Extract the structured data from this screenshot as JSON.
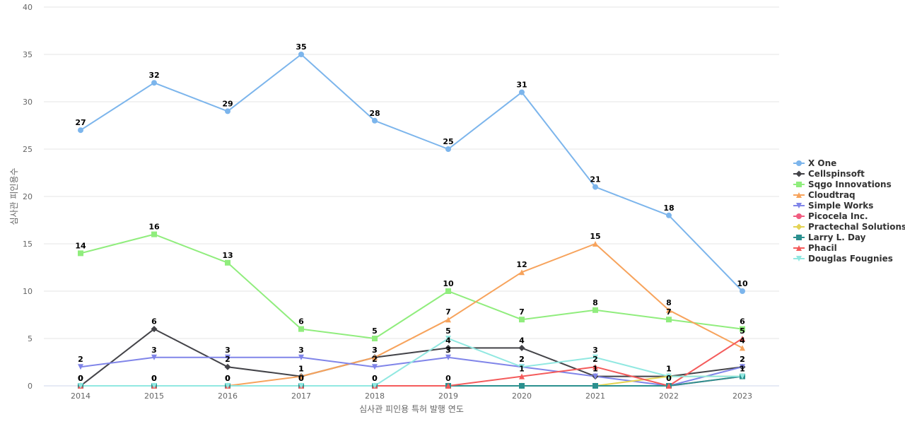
{
  "chart_data": {
    "type": "line",
    "title": "",
    "xlabel": "심사관 피인용 특허 발행 연도",
    "ylabel": "심사관 피인용수",
    "categories": [
      "2014",
      "2015",
      "2016",
      "2017",
      "2018",
      "2019",
      "2020",
      "2021",
      "2022",
      "2023"
    ],
    "ylim": [
      0,
      40
    ],
    "yticks": [
      0,
      5,
      10,
      15,
      20,
      25,
      30,
      35,
      40
    ],
    "grid": true,
    "legend_position": "right",
    "series": [
      {
        "name": "X One",
        "color": "#7cb5ec",
        "marker": "circle",
        "values": [
          27,
          32,
          29,
          35,
          28,
          25,
          31,
          21,
          18,
          10
        ],
        "labels": true
      },
      {
        "name": "Cellspinsoft",
        "color": "#434348",
        "marker": "diamond",
        "values": [
          0,
          6,
          2,
          1,
          3,
          4,
          4,
          1,
          1,
          2
        ],
        "labels": true
      },
      {
        "name": "Sqgo Innovations",
        "color": "#90ed7d",
        "marker": "square",
        "values": [
          14,
          16,
          13,
          6,
          5,
          10,
          7,
          8,
          7,
          6
        ],
        "labels": true
      },
      {
        "name": "Cloudtraq",
        "color": "#f7a35c",
        "marker": "triangle",
        "values": [
          0,
          0,
          0,
          1,
          3,
          7,
          12,
          15,
          8,
          4
        ],
        "labels": true
      },
      {
        "name": "Simple Works",
        "color": "#8085e9",
        "marker": "triangle-down",
        "values": [
          2,
          3,
          3,
          3,
          2,
          3,
          2,
          1,
          0,
          2
        ],
        "labels": true
      },
      {
        "name": "Picocela Inc.",
        "color": "#f15c80",
        "marker": "circle",
        "values": [
          0,
          0,
          0,
          0,
          0,
          0,
          0,
          0,
          0,
          1
        ],
        "labels": false
      },
      {
        "name": "Practechal Solutions",
        "color": "#e4d354",
        "marker": "diamond",
        "values": [
          0,
          0,
          0,
          0,
          0,
          0,
          0,
          0,
          1,
          1
        ],
        "labels": false
      },
      {
        "name": "Larry L. Day",
        "color": "#2b908f",
        "marker": "square",
        "values": [
          0,
          0,
          0,
          0,
          0,
          0,
          0,
          0,
          0,
          1
        ],
        "labels": false
      },
      {
        "name": "Phacil",
        "color": "#f45b5b",
        "marker": "triangle",
        "values": [
          0,
          0,
          0,
          0,
          0,
          0,
          1,
          2,
          0,
          5
        ],
        "labels": true
      },
      {
        "name": "Douglas Fougnies",
        "color": "#91e8e1",
        "marker": "triangle-down",
        "values": [
          0,
          0,
          0,
          0,
          0,
          5,
          2,
          3,
          1,
          1
        ],
        "labels": true
      }
    ]
  }
}
